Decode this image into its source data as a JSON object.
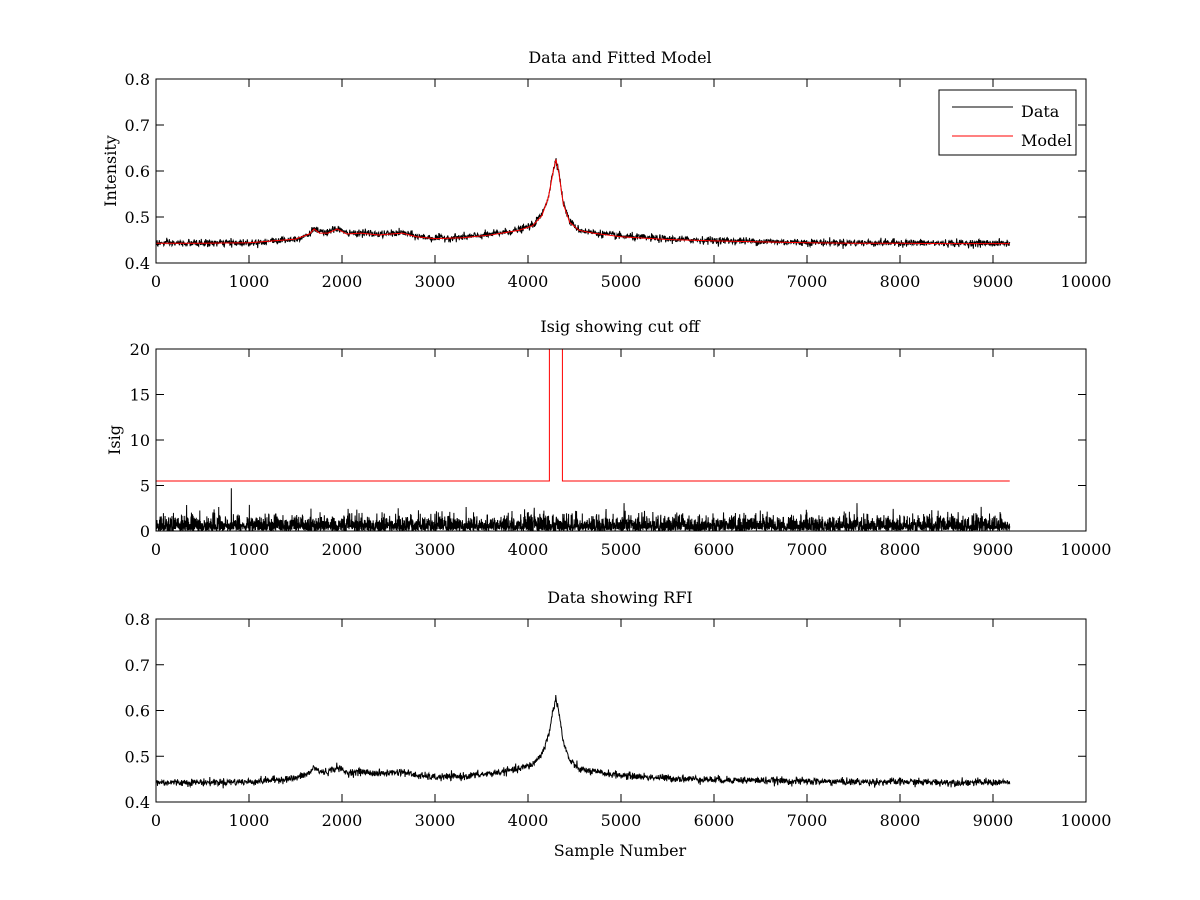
{
  "chart_data": [
    {
      "type": "line",
      "title": "Data and Fitted Model",
      "xlabel": "",
      "ylabel": "Intensity",
      "xlim": [
        0,
        10000
      ],
      "ylim": [
        0.4,
        0.8
      ],
      "xticks": [
        0,
        1000,
        2000,
        3000,
        4000,
        5000,
        6000,
        7000,
        8000,
        9000,
        10000
      ],
      "yticks": [
        0.4,
        0.5,
        0.6,
        0.7,
        0.8
      ],
      "ytick_labels": [
        "0.4",
        "0.5",
        "0.6",
        "0.7",
        "0.8"
      ],
      "grid": false,
      "legend": {
        "placement": "top-right",
        "entries": [
          "Data",
          "Model"
        ]
      },
      "series": [
        {
          "name": "Data",
          "color": "#000000",
          "noise": 0.004,
          "x": [
            0,
            500,
            1000,
            1500,
            1650,
            1700,
            1760,
            1850,
            1950,
            2050,
            2200,
            2400,
            2650,
            2800,
            3000,
            3300,
            3600,
            3900,
            4050,
            4150,
            4220,
            4270,
            4300,
            4330,
            4380,
            4450,
            4550,
            4700,
            5000,
            5500,
            6000,
            6500,
            7000,
            7500,
            8000,
            8500,
            9000,
            9180
          ],
          "y": [
            0.443,
            0.443,
            0.444,
            0.452,
            0.463,
            0.476,
            0.466,
            0.466,
            0.476,
            0.464,
            0.466,
            0.462,
            0.466,
            0.458,
            0.454,
            0.456,
            0.462,
            0.472,
            0.482,
            0.505,
            0.545,
            0.6,
            0.628,
            0.6,
            0.53,
            0.49,
            0.472,
            0.466,
            0.458,
            0.452,
            0.449,
            0.447,
            0.445,
            0.444,
            0.444,
            0.443,
            0.443,
            0.443
          ]
        },
        {
          "name": "Model",
          "color": "#ff0000",
          "noise": 0,
          "x": [
            0,
            500,
            1000,
            1500,
            1650,
            1700,
            1760,
            1850,
            1950,
            2050,
            2200,
            2400,
            2650,
            2800,
            3000,
            3300,
            3600,
            3900,
            4050,
            4150,
            4220,
            4270,
            4300,
            4330,
            4380,
            4450,
            4550,
            4700,
            5000,
            5500,
            6000,
            6500,
            7000,
            7500,
            8000,
            8500,
            9000,
            9180
          ],
          "y": [
            0.443,
            0.443,
            0.444,
            0.452,
            0.463,
            0.474,
            0.465,
            0.465,
            0.474,
            0.463,
            0.465,
            0.461,
            0.465,
            0.457,
            0.453,
            0.455,
            0.461,
            0.471,
            0.481,
            0.503,
            0.543,
            0.598,
            0.625,
            0.598,
            0.528,
            0.488,
            0.471,
            0.465,
            0.457,
            0.451,
            0.448,
            0.446,
            0.444,
            0.443,
            0.443,
            0.442,
            0.442,
            0.442
          ]
        }
      ]
    },
    {
      "type": "line",
      "title": "Isig showing cut off",
      "xlabel": "",
      "ylabel": "Isig",
      "xlim": [
        0,
        10000
      ],
      "ylim": [
        0,
        20
      ],
      "xticks": [
        0,
        1000,
        2000,
        3000,
        4000,
        5000,
        6000,
        7000,
        8000,
        9000,
        10000
      ],
      "yticks": [
        0,
        5,
        10,
        15,
        20
      ],
      "ytick_labels": [
        "0",
        "5",
        "10",
        "15",
        "20"
      ],
      "grid": false,
      "series": [
        {
          "color": "#000000",
          "noise_type": "abs-gaussian",
          "noise_scale": 0.8,
          "x_end": 9180,
          "peak": {
            "x": 810,
            "y": 4.7
          }
        },
        {
          "color": "#ff0000",
          "noise": 0,
          "x": [
            0,
            4230,
            4230,
            4370,
            4370,
            9180
          ],
          "y": [
            5.5,
            5.5,
            20,
            20,
            5.5,
            5.5
          ]
        }
      ]
    },
    {
      "type": "line",
      "title": "Data showing RFI",
      "xlabel": "Sample Number",
      "ylabel": "",
      "xlim": [
        0,
        10000
      ],
      "ylim": [
        0.4,
        0.8
      ],
      "xticks": [
        0,
        1000,
        2000,
        3000,
        4000,
        5000,
        6000,
        7000,
        8000,
        9000,
        10000
      ],
      "yticks": [
        0.4,
        0.5,
        0.6,
        0.7,
        0.8
      ],
      "ytick_labels": [
        "0.4",
        "0.5",
        "0.6",
        "0.7",
        "0.8"
      ],
      "grid": false,
      "series": [
        {
          "color": "#000000",
          "noise": 0.004,
          "x": [
            0,
            500,
            1000,
            1500,
            1650,
            1700,
            1760,
            1850,
            1950,
            2050,
            2200,
            2400,
            2650,
            2800,
            3000,
            3300,
            3600,
            3900,
            4050,
            4150,
            4220,
            4270,
            4300,
            4330,
            4380,
            4450,
            4550,
            4700,
            5000,
            5500,
            6000,
            6500,
            7000,
            7500,
            8000,
            8500,
            9000,
            9180
          ],
          "y": [
            0.443,
            0.443,
            0.444,
            0.452,
            0.463,
            0.476,
            0.466,
            0.466,
            0.476,
            0.464,
            0.466,
            0.462,
            0.466,
            0.458,
            0.454,
            0.456,
            0.462,
            0.472,
            0.482,
            0.505,
            0.545,
            0.6,
            0.628,
            0.6,
            0.53,
            0.49,
            0.472,
            0.466,
            0.458,
            0.452,
            0.449,
            0.447,
            0.445,
            0.444,
            0.444,
            0.443,
            0.443,
            0.443
          ]
        }
      ]
    }
  ]
}
